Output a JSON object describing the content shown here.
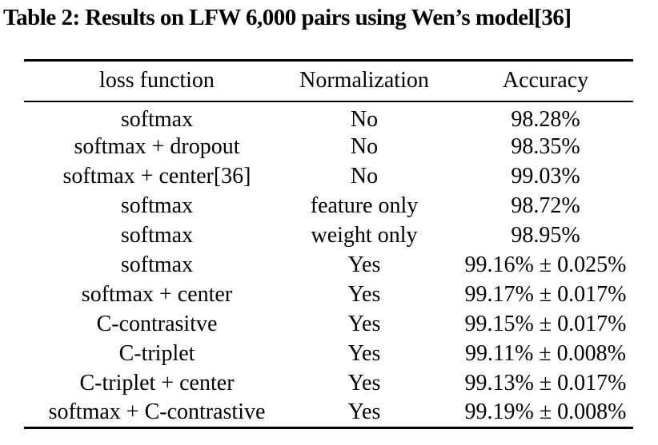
{
  "title": "Table 2: Results on LFW 6,000 pairs using Wen’s model[36]",
  "colors": {
    "text": "#000000",
    "background": "#ffffff",
    "rule": "#000000"
  },
  "table": {
    "columns": [
      "loss function",
      "Normalization",
      "Accuracy"
    ],
    "rows": [
      [
        "softmax",
        "No",
        "98.28%"
      ],
      [
        "softmax + dropout",
        "No",
        "98.35%"
      ],
      [
        "softmax + center[36]",
        "No",
        "99.03%"
      ],
      [
        "softmax",
        "feature only",
        "98.72%"
      ],
      [
        "softmax",
        "weight only",
        "98.95%"
      ],
      [
        "softmax",
        "Yes",
        "99.16% ± 0.025%"
      ],
      [
        "softmax + center",
        "Yes",
        "99.17% ± 0.017%"
      ],
      [
        "C-contrasitve",
        "Yes",
        "99.15% ± 0.017%"
      ],
      [
        "C-triplet",
        "Yes",
        "99.11% ± 0.008%"
      ],
      [
        "C-triplet + center",
        "Yes",
        "99.13% ± 0.017%"
      ],
      [
        "softmax + C-contrastive",
        "Yes",
        "99.19% ± 0.008%"
      ]
    ]
  }
}
